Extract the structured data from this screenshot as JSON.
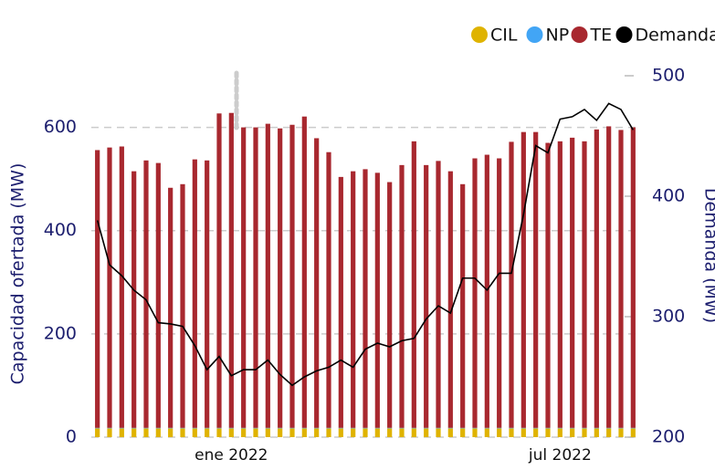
{
  "chart_data": {
    "type": "bar-line",
    "ylabel": "Capacidad ofertada (MW)",
    "y2label": "Demanda (MW)",
    "categories": [
      null,
      null,
      null,
      null,
      null,
      null,
      null,
      null,
      null,
      null,
      null,
      "ene 2022",
      null,
      null,
      null,
      null,
      null,
      null,
      null,
      null,
      null,
      null,
      null,
      null,
      null,
      null,
      null,
      null,
      null,
      null,
      null,
      null,
      null,
      null,
      null,
      null,
      null,
      null,
      "jul 2022",
      null,
      null,
      null,
      null,
      null,
      null
    ],
    "ylim": [
      0,
      700
    ],
    "yticks": [
      0,
      200,
      400,
      600
    ],
    "y2lim": [
      200,
      500
    ],
    "y2ticks": [
      200,
      300,
      400,
      500
    ],
    "grid": true,
    "legend": "top-right",
    "series": [
      {
        "name": "CIL",
        "color": "#dfb300",
        "type": "bar",
        "values": [
          17,
          17,
          17,
          17,
          17,
          17,
          17,
          17,
          17,
          17,
          17,
          17,
          17,
          17,
          17,
          17,
          17,
          17,
          17,
          17,
          17,
          17,
          17,
          17,
          17,
          17,
          17,
          17,
          17,
          17,
          17,
          17,
          17,
          17,
          17,
          17,
          17,
          17,
          17,
          17,
          17,
          17,
          17,
          17,
          17
        ]
      },
      {
        "name": "NP",
        "color": "#42a5f5",
        "type": "bar",
        "values": [
          1,
          1,
          1,
          1,
          1,
          1,
          1,
          1,
          1,
          1,
          1,
          1,
          1,
          1,
          1,
          1,
          1,
          1,
          1,
          1,
          1,
          1,
          1,
          1,
          1,
          1,
          1,
          1,
          1,
          1,
          1,
          1,
          1,
          1,
          1,
          1,
          1,
          1,
          1,
          1,
          1,
          1,
          1,
          1,
          1
        ]
      },
      {
        "name": "TE",
        "color": "#a8282f",
        "type": "bar",
        "values": [
          538,
          543,
          545,
          497,
          518,
          513,
          465,
          472,
          520,
          518,
          609,
          610,
          582,
          582,
          589,
          580,
          587,
          603,
          561,
          534,
          486,
          497,
          501,
          494,
          476,
          509,
          555,
          509,
          517,
          497,
          472,
          522,
          529,
          522,
          554,
          573,
          573,
          552,
          555,
          562,
          555,
          578,
          584,
          577,
          582
        ]
      },
      {
        "name": "Demanda",
        "color": "#000000",
        "type": "line",
        "axis": "y2",
        "values": [
          380,
          343,
          334,
          322,
          314,
          295,
          294,
          292,
          276,
          256,
          267,
          251,
          256,
          256,
          264,
          252,
          243,
          250,
          255,
          258,
          264,
          258,
          273,
          278,
          275,
          280,
          282,
          298,
          309,
          303,
          332,
          332,
          322,
          336,
          336,
          385,
          442,
          436,
          464,
          466,
          472,
          463,
          477,
          472,
          455
        ]
      }
    ]
  }
}
